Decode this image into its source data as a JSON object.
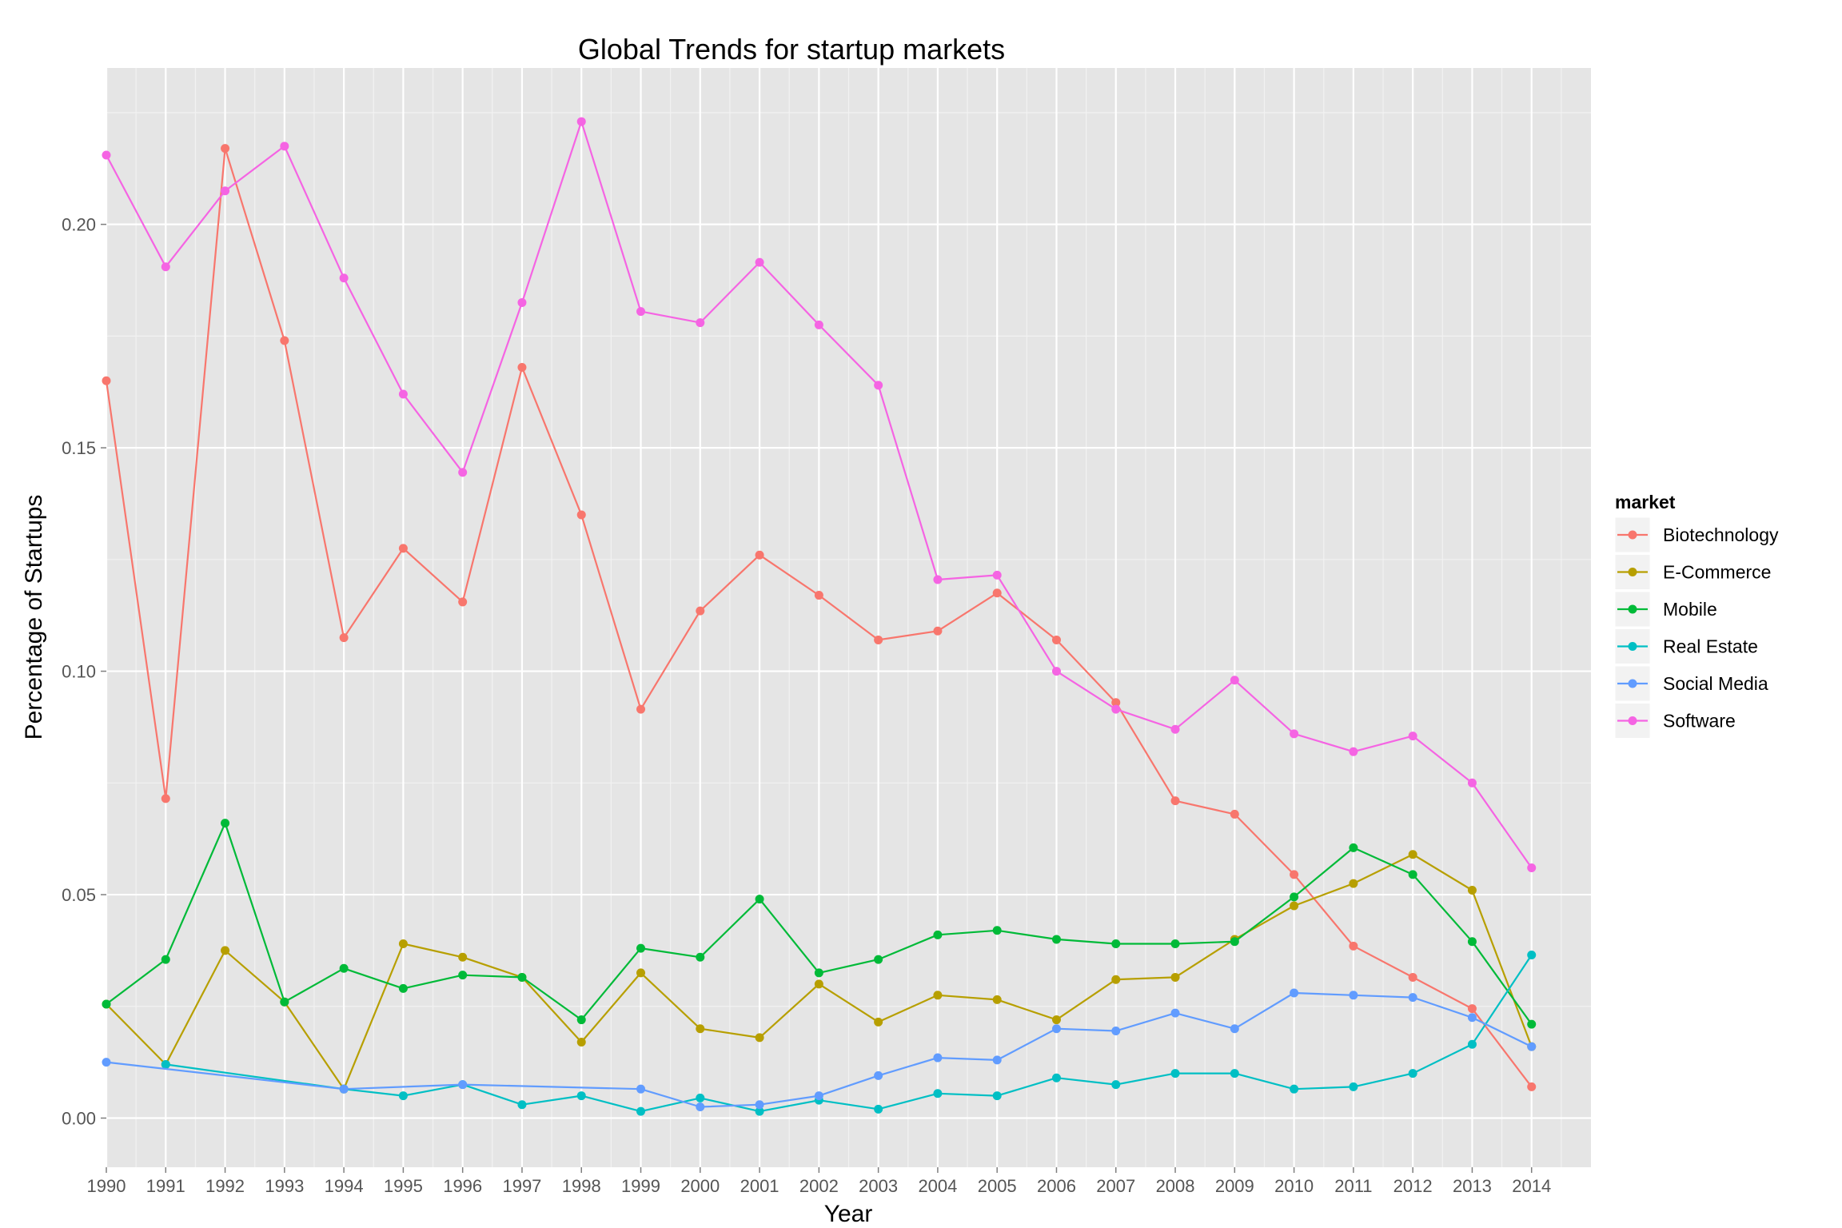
{
  "chart_data": {
    "type": "line",
    "title": "Global Trends for startup markets",
    "xlabel": "Year",
    "ylabel": "Percentage of Startups",
    "x": [
      1990,
      1991,
      1992,
      1993,
      1994,
      1995,
      1996,
      1997,
      1998,
      1999,
      2000,
      2001,
      2002,
      2003,
      2004,
      2005,
      2006,
      2007,
      2008,
      2009,
      2010,
      2011,
      2012,
      2013,
      2014
    ],
    "y_ticks": [
      0.0,
      0.05,
      0.1,
      0.15,
      0.2
    ],
    "y_tick_labels": [
      "0.00",
      "0.05",
      "0.10",
      "0.15",
      "0.20"
    ],
    "xlim": [
      1990,
      2015
    ],
    "ylim": [
      -0.011,
      0.235
    ],
    "grid": true,
    "legend": {
      "title": "market",
      "position": "right"
    },
    "series": [
      {
        "name": "Biotechnology",
        "color": "#F8766D",
        "x": [
          1990,
          1991,
          1992,
          1993,
          1994,
          1995,
          1996,
          1997,
          1998,
          1999,
          2000,
          2001,
          2002,
          2003,
          2004,
          2005,
          2006,
          2007,
          2008,
          2009,
          2010,
          2011,
          2012,
          2013,
          2014
        ],
        "values": [
          0.165,
          0.0715,
          0.217,
          0.174,
          0.1075,
          0.1275,
          0.1155,
          0.168,
          0.135,
          0.0915,
          0.1135,
          0.126,
          0.117,
          0.107,
          0.109,
          0.1175,
          0.107,
          0.093,
          0.071,
          0.068,
          0.0545,
          0.0385,
          0.0315,
          0.0245,
          0.007
        ]
      },
      {
        "name": "E-Commerce",
        "color": "#B79F00",
        "x": [
          1990,
          1991,
          1992,
          1993,
          1994,
          1995,
          1996,
          1997,
          1998,
          1999,
          2000,
          2001,
          2002,
          2003,
          2004,
          2005,
          2006,
          2007,
          2008,
          2009,
          2010,
          2011,
          2012,
          2013,
          2014
        ],
        "values": [
          0.0255,
          0.012,
          0.0375,
          0.026,
          0.0065,
          0.039,
          0.036,
          0.0315,
          0.017,
          0.0325,
          0.02,
          0.018,
          0.03,
          0.0215,
          0.0275,
          0.0265,
          0.022,
          0.031,
          0.0315,
          0.04,
          0.0475,
          0.0525,
          0.059,
          0.051,
          0.016
        ]
      },
      {
        "name": "Mobile",
        "color": "#00BA38",
        "x": [
          1990,
          1991,
          1992,
          1993,
          1994,
          1995,
          1996,
          1997,
          1998,
          1999,
          2000,
          2001,
          2002,
          2003,
          2004,
          2005,
          2006,
          2007,
          2008,
          2009,
          2010,
          2011,
          2012,
          2013,
          2014
        ],
        "values": [
          0.0255,
          0.0355,
          0.066,
          0.026,
          0.0335,
          0.029,
          0.032,
          0.0315,
          0.022,
          0.038,
          0.036,
          0.049,
          0.0325,
          0.0355,
          0.041,
          0.042,
          0.04,
          0.039,
          0.039,
          0.0395,
          0.0495,
          0.0605,
          0.0545,
          0.0395,
          0.021
        ]
      },
      {
        "name": "Real Estate",
        "color": "#00BFC4",
        "x": [
          1991,
          1994,
          1995,
          1996,
          1997,
          1998,
          1999,
          2000,
          2001,
          2002,
          2003,
          2004,
          2005,
          2006,
          2007,
          2008,
          2009,
          2010,
          2011,
          2012,
          2013,
          2014
        ],
        "values": [
          0.012,
          0.0065,
          0.005,
          0.0075,
          0.003,
          0.005,
          0.0015,
          0.0045,
          0.0015,
          0.004,
          0.002,
          0.0055,
          0.005,
          0.009,
          0.0075,
          0.01,
          0.01,
          0.0065,
          0.007,
          0.01,
          0.0165,
          0.0365
        ]
      },
      {
        "name": "Social Media",
        "color": "#619CFF",
        "x": [
          1990,
          1994,
          1996,
          1999,
          2000,
          2001,
          2002,
          2003,
          2004,
          2005,
          2006,
          2007,
          2008,
          2009,
          2010,
          2011,
          2012,
          2013,
          2014
        ],
        "values": [
          0.0125,
          0.0065,
          0.0075,
          0.0065,
          0.0025,
          0.003,
          0.005,
          0.0095,
          0.0135,
          0.013,
          0.02,
          0.0195,
          0.0235,
          0.02,
          0.028,
          0.0275,
          0.027,
          0.0225,
          0.016
        ]
      },
      {
        "name": "Software",
        "color": "#F564E3",
        "x": [
          1990,
          1991,
          1992,
          1993,
          1994,
          1995,
          1996,
          1997,
          1998,
          1999,
          2000,
          2001,
          2002,
          2003,
          2004,
          2005,
          2006,
          2007,
          2008,
          2009,
          2010,
          2011,
          2012,
          2013,
          2014
        ],
        "values": [
          0.2155,
          0.1905,
          0.2075,
          0.2175,
          0.188,
          0.162,
          0.1445,
          0.1825,
          0.223,
          0.1805,
          0.178,
          0.1915,
          0.1775,
          0.164,
          0.1205,
          0.1215,
          0.1,
          0.0915,
          0.087,
          0.098,
          0.086,
          0.082,
          0.0855,
          0.075,
          0.056
        ]
      }
    ]
  }
}
